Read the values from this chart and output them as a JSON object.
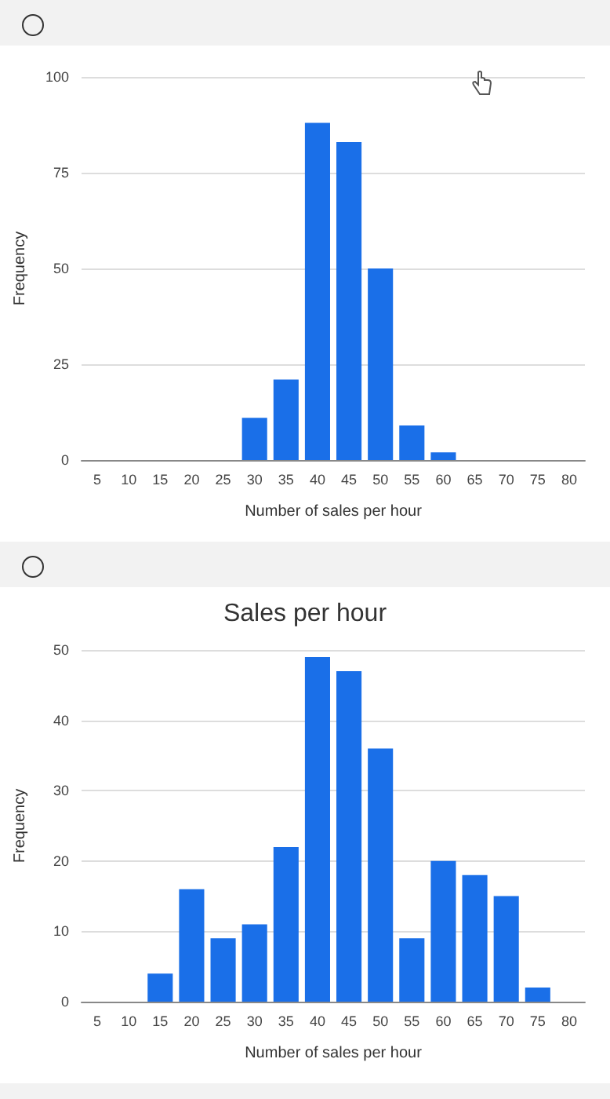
{
  "chart_data": [
    {
      "type": "bar",
      "xlabel": "Number of sales per hour",
      "ylabel": "Frequency",
      "categories": [
        "5",
        "10",
        "15",
        "20",
        "25",
        "30",
        "35",
        "40",
        "45",
        "50",
        "55",
        "60",
        "65",
        "70",
        "75",
        "80"
      ],
      "values": [
        0,
        0,
        0,
        0,
        0,
        11,
        21,
        88,
        83,
        50,
        9,
        2,
        0,
        0,
        0,
        0
      ],
      "color": "#1a6fe8",
      "ylim": [
        0,
        100
      ],
      "yticks": [
        0,
        25,
        50,
        75,
        100
      ],
      "grid": "y"
    },
    {
      "type": "bar",
      "title": "Sales per hour",
      "xlabel": "Number of sales per hour",
      "ylabel": "Frequency",
      "categories": [
        "5",
        "10",
        "15",
        "20",
        "25",
        "30",
        "35",
        "40",
        "45",
        "50",
        "55",
        "60",
        "65",
        "70",
        "75",
        "80"
      ],
      "values": [
        0,
        0,
        4,
        16,
        9,
        11,
        22,
        49,
        47,
        36,
        9,
        20,
        18,
        15,
        2,
        0
      ],
      "color": "#1a6fe8",
      "ylim": [
        0,
        50
      ],
      "yticks": [
        0,
        10,
        20,
        30,
        40,
        50
      ],
      "grid": "y"
    }
  ]
}
